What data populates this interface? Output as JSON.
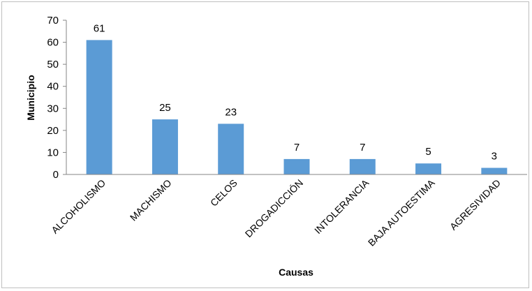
{
  "chart_data": {
    "type": "bar",
    "categories": [
      "ALCOHOLISMO",
      "MACHISMO",
      "CELOS",
      "DROGADICCIÓN",
      "INTOLERANCIA",
      "BAJA AUTOESTIMA",
      "AGRESIVIDAD"
    ],
    "values": [
      61,
      25,
      23,
      7,
      7,
      5,
      3
    ],
    "title": "",
    "xlabel": "Causas",
    "ylabel": "Municipio",
    "ylim": [
      0,
      70
    ],
    "yticks": [
      0,
      10,
      20,
      30,
      40,
      50,
      60,
      70
    ],
    "grid": false,
    "legend": "none",
    "data_labels": true,
    "colors": {
      "bar": "#5b9bd5",
      "axis": "#868686",
      "text": "#000000"
    }
  }
}
